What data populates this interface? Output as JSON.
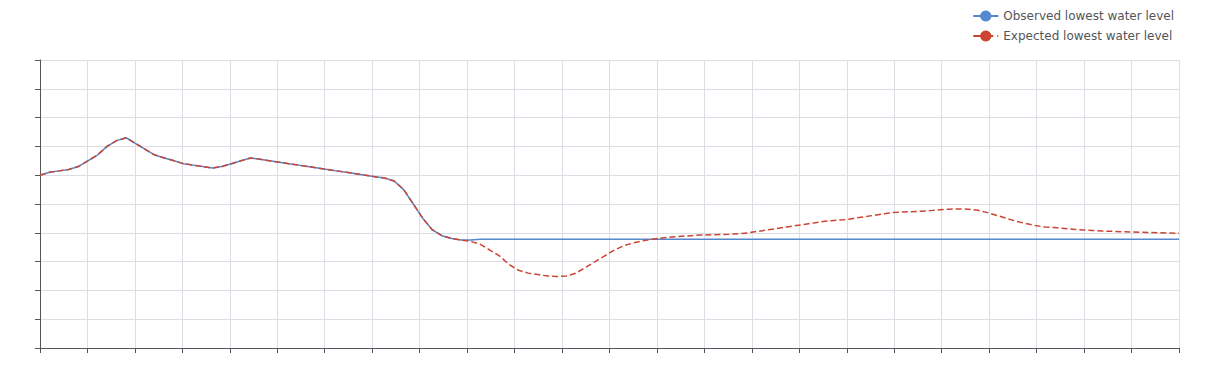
{
  "chart_data": {
    "type": "line",
    "x": [
      0,
      1,
      2,
      3,
      4,
      5,
      6,
      7,
      8,
      9,
      10,
      11,
      12,
      13,
      14,
      15,
      16,
      17,
      18,
      19,
      20,
      21,
      22,
      23,
      24,
      25,
      26,
      27,
      28,
      29,
      30,
      31,
      32,
      33,
      34,
      35,
      36,
      37,
      38,
      39,
      40,
      41,
      42,
      43,
      44,
      45,
      46,
      47,
      48,
      49,
      50,
      51,
      52,
      53,
      54,
      55,
      56,
      57,
      58,
      59,
      60,
      61,
      62,
      63,
      64,
      65,
      66,
      67,
      68,
      69,
      70,
      71,
      72,
      73,
      74,
      75,
      76,
      77,
      78,
      79,
      80,
      81,
      82,
      83,
      84,
      85,
      86,
      87,
      88,
      89,
      90,
      91,
      92,
      93,
      94,
      95,
      96,
      97,
      98,
      99,
      100,
      101,
      102,
      103,
      104,
      105,
      106,
      107,
      108,
      109,
      110,
      111,
      112,
      113,
      114,
      115,
      116,
      117,
      118,
      119
    ],
    "series": [
      {
        "name": "Observed lowest water level",
        "color": "#5588CC",
        "line_style": "solid",
        "values": [
          6.0,
          6.1,
          6.15,
          6.2,
          6.3,
          6.5,
          6.7,
          7.0,
          7.2,
          7.3,
          7.1,
          6.9,
          6.7,
          6.6,
          6.5,
          6.4,
          6.35,
          6.3,
          6.25,
          6.3,
          6.4,
          6.5,
          6.6,
          6.55,
          6.5,
          6.45,
          6.4,
          6.35,
          6.3,
          6.25,
          6.2,
          6.15,
          6.1,
          6.05,
          6.0,
          5.95,
          5.9,
          5.8,
          5.5,
          5.0,
          4.5,
          4.1,
          3.9,
          3.8,
          3.75,
          3.75,
          3.78,
          3.78,
          3.78,
          3.78,
          3.78,
          3.78,
          3.78,
          3.78,
          3.78,
          3.78,
          3.78,
          3.78,
          3.78,
          3.78,
          3.78,
          3.78,
          3.78,
          3.78,
          3.78,
          3.78,
          3.78,
          3.78,
          3.78,
          3.78,
          3.78,
          3.78,
          3.78,
          3.78,
          3.78,
          3.78,
          3.78,
          3.78,
          3.78,
          3.78,
          3.78,
          3.78,
          3.78,
          3.78,
          3.78,
          3.78,
          3.78,
          3.78,
          3.78,
          3.78,
          3.78,
          3.78,
          3.78,
          3.78,
          3.78,
          3.78,
          3.78,
          3.78,
          3.78,
          3.78,
          3.78,
          3.78,
          3.78,
          3.78,
          3.78,
          3.78,
          3.78,
          3.78,
          3.78,
          3.78,
          3.78,
          3.78,
          3.78,
          3.78,
          3.78,
          3.78,
          3.78,
          3.78,
          3.78,
          3.78
        ]
      },
      {
        "name": "Expected lowest water level",
        "color": "#CC4433",
        "line_style": "dashed",
        "values": [
          6.0,
          6.1,
          6.15,
          6.2,
          6.3,
          6.5,
          6.7,
          7.0,
          7.2,
          7.3,
          7.1,
          6.9,
          6.7,
          6.6,
          6.5,
          6.4,
          6.35,
          6.3,
          6.25,
          6.3,
          6.4,
          6.5,
          6.6,
          6.55,
          6.5,
          6.45,
          6.4,
          6.35,
          6.3,
          6.25,
          6.2,
          6.15,
          6.1,
          6.05,
          6.0,
          5.95,
          5.9,
          5.8,
          5.5,
          5.0,
          4.5,
          4.1,
          3.9,
          3.8,
          3.75,
          3.7,
          3.6,
          3.4,
          3.2,
          2.9,
          2.7,
          2.6,
          2.55,
          2.5,
          2.48,
          2.5,
          2.6,
          2.8,
          3.0,
          3.2,
          3.4,
          3.55,
          3.65,
          3.72,
          3.78,
          3.82,
          3.85,
          3.88,
          3.9,
          3.92,
          3.93,
          3.94,
          3.95,
          3.97,
          4.0,
          4.05,
          4.1,
          4.15,
          4.2,
          4.25,
          4.3,
          4.35,
          4.4,
          4.43,
          4.45,
          4.5,
          4.55,
          4.6,
          4.65,
          4.7,
          4.72,
          4.73,
          4.75,
          4.77,
          4.8,
          4.82,
          4.83,
          4.82,
          4.78,
          4.7,
          4.6,
          4.5,
          4.4,
          4.32,
          4.25,
          4.2,
          4.18,
          4.15,
          4.12,
          4.1,
          4.08,
          4.06,
          4.05,
          4.04,
          4.03,
          4.02,
          4.01,
          4.0,
          3.99,
          3.98
        ]
      }
    ],
    "xlim": [
      0,
      119
    ],
    "ylim": [
      0,
      10
    ],
    "xticks": [
      0,
      4.958333333333333,
      9.916666666666666,
      14.875,
      19.833333333333332,
      24.791666666666668,
      29.75,
      34.708333333333336,
      39.666666666666664,
      44.625,
      49.583333333333336,
      54.541666666666664,
      59.5,
      64.45833333333333,
      69.41666666666667,
      74.375,
      79.33333333333333,
      84.29166666666667,
      89.25,
      94.20833333333333,
      99.16666666666667,
      104.125,
      109.08333333333333,
      114.04166666666667,
      119
    ],
    "yticks": [
      0,
      1,
      2,
      3,
      4,
      5,
      6,
      7,
      8,
      9,
      10
    ],
    "grid": true,
    "tick_labels": false,
    "legend": "upper right"
  }
}
